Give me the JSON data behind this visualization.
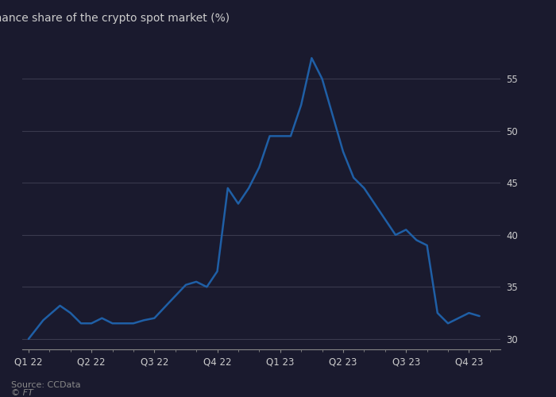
{
  "title": "Binance share of the crypto spot market (%)",
  "source": "Source: CCData",
  "watermark": "© FT",
  "line_color": "#1f5fa6",
  "background_color": "#1a1a2e",
  "plot_bg_color": "#1a1a2e",
  "grid_color": "#3a3a4e",
  "text_color": "#cccccc",
  "tick_color": "#888888",
  "x_labels": [
    "Q1 22",
    "Q2 22",
    "Q3 22",
    "Q4 22",
    "Q1 23",
    "Q2 23",
    "Q3 23",
    "Q4 23"
  ],
  "x_positions": [
    0,
    3,
    6,
    9,
    12,
    15,
    18,
    21
  ],
  "y_ticks": [
    30,
    35,
    40,
    45,
    50,
    55
  ],
  "ylim": [
    29.0,
    58.0
  ],
  "xlim": [
    -0.3,
    22.5
  ],
  "data_x": [
    0,
    0.7,
    1.5,
    2.0,
    2.5,
    3.0,
    3.5,
    4.0,
    4.5,
    5.0,
    5.5,
    6.0,
    6.7,
    7.5,
    8.0,
    8.5,
    9.0,
    9.5,
    10.0,
    10.5,
    11.0,
    11.5,
    12.0,
    12.5,
    13.0,
    13.5,
    14.0,
    14.5,
    15.0,
    15.5,
    16.0,
    16.5,
    17.0,
    17.5,
    18.0,
    18.5,
    19.0,
    19.5,
    20.0,
    20.5,
    21.0,
    21.5
  ],
  "data_y": [
    30.0,
    31.8,
    33.2,
    32.5,
    31.5,
    31.5,
    32.0,
    31.5,
    31.5,
    31.5,
    31.8,
    32.0,
    33.5,
    35.2,
    35.5,
    35.0,
    36.5,
    44.5,
    43.0,
    44.5,
    46.5,
    49.5,
    49.5,
    49.5,
    52.5,
    57.0,
    55.0,
    51.5,
    48.0,
    45.5,
    44.5,
    43.0,
    41.5,
    40.0,
    40.5,
    39.5,
    39.0,
    32.5,
    31.5,
    32.0,
    32.5,
    32.2
  ]
}
